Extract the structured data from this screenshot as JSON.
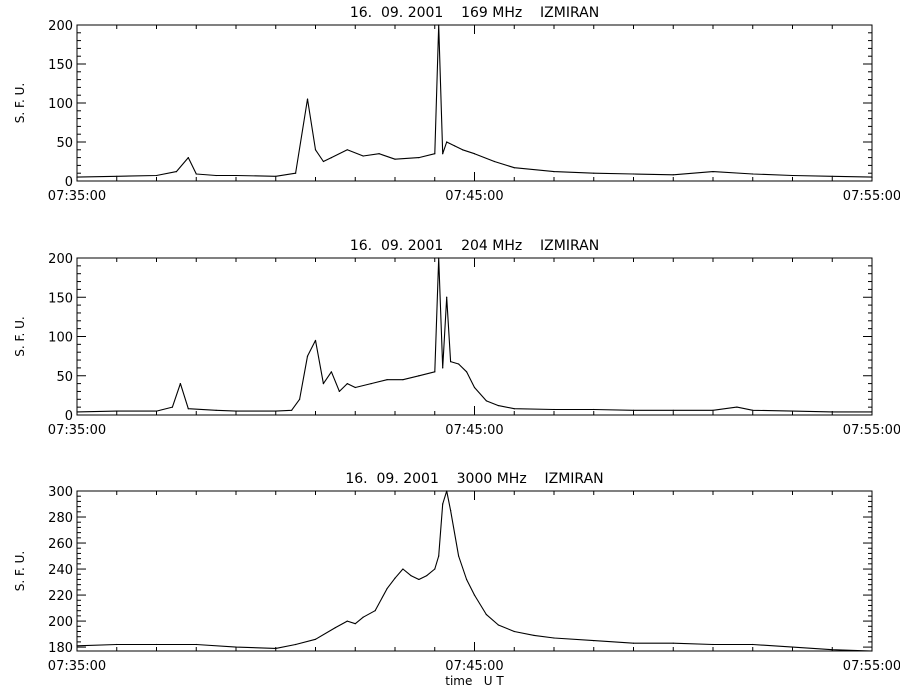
{
  "chart_data": [
    {
      "type": "line",
      "title": "16.  09. 2001    169 MHz    IZMIRAN",
      "ylabel": "S. F. U.",
      "xlabel": "",
      "xlim": [
        "07:35:00",
        "07:55:00"
      ],
      "x_ticks": [
        "07:35:00",
        "07:45:00",
        "07:55:00"
      ],
      "ylim": [
        0,
        200
      ],
      "y_ticks": [
        0,
        50,
        100,
        150,
        200
      ],
      "grid": false,
      "series": [
        {
          "x": [
            "07:35:00",
            "07:36:00",
            "07:37:00",
            "07:37:30",
            "07:37:48",
            "07:38:00",
            "07:38:30",
            "07:39:00",
            "07:40:00",
            "07:40:30",
            "07:40:48",
            "07:41:00",
            "07:41:12",
            "07:41:24",
            "07:41:48",
            "07:42:12",
            "07:42:36",
            "07:43:00",
            "07:43:36",
            "07:44:00",
            "07:44:06",
            "07:44:12",
            "07:44:18",
            "07:44:30",
            "07:44:42",
            "07:45:00",
            "07:45:30",
            "07:46:00",
            "07:47:00",
            "07:48:00",
            "07:49:00",
            "07:50:00",
            "07:51:00",
            "07:52:00",
            "07:53:00",
            "07:54:00",
            "07:55:00"
          ],
          "y": [
            5,
            6,
            7,
            12,
            30,
            9,
            7,
            7,
            6,
            10,
            105,
            40,
            25,
            30,
            40,
            32,
            35,
            28,
            30,
            35,
            200,
            35,
            50,
            45,
            40,
            35,
            25,
            17,
            12,
            10,
            9,
            8,
            12,
            9,
            7,
            6,
            5
          ]
        }
      ]
    },
    {
      "type": "line",
      "title": "16.  09. 2001    204 MHz    IZMIRAN",
      "ylabel": "S. F. U.",
      "xlabel": "",
      "xlim": [
        "07:35:00",
        "07:55:00"
      ],
      "x_ticks": [
        "07:35:00",
        "07:45:00",
        "07:55:00"
      ],
      "ylim": [
        0,
        200
      ],
      "y_ticks": [
        0,
        50,
        100,
        150,
        200
      ],
      "grid": false,
      "series": [
        {
          "x": [
            "07:35:00",
            "07:36:00",
            "07:37:00",
            "07:37:24",
            "07:37:36",
            "07:37:48",
            "07:38:30",
            "07:39:00",
            "07:40:00",
            "07:40:24",
            "07:40:36",
            "07:40:48",
            "07:41:00",
            "07:41:12",
            "07:41:24",
            "07:41:36",
            "07:41:48",
            "07:42:00",
            "07:42:24",
            "07:42:48",
            "07:43:12",
            "07:43:36",
            "07:44:00",
            "07:44:06",
            "07:44:12",
            "07:44:18",
            "07:44:24",
            "07:44:36",
            "07:44:48",
            "07:45:00",
            "07:45:18",
            "07:45:36",
            "07:46:00",
            "07:47:00",
            "07:48:00",
            "07:49:00",
            "07:50:00",
            "07:51:00",
            "07:51:36",
            "07:52:00",
            "07:53:00",
            "07:54:00",
            "07:55:00"
          ],
          "y": [
            4,
            5,
            5,
            10,
            40,
            8,
            6,
            5,
            5,
            6,
            20,
            75,
            95,
            40,
            55,
            30,
            40,
            35,
            40,
            45,
            45,
            50,
            55,
            200,
            60,
            150,
            68,
            65,
            55,
            35,
            18,
            12,
            8,
            7,
            7,
            6,
            6,
            6,
            10,
            6,
            5,
            4,
            4
          ]
        }
      ]
    },
    {
      "type": "line",
      "title": "16.  09. 2001    3000 MHz    IZMIRAN",
      "ylabel": "S. F. U.",
      "xlabel": "time   U T",
      "xlim": [
        "07:35:00",
        "07:55:00"
      ],
      "x_ticks": [
        "07:35:00",
        "07:45:00",
        "07:55:00"
      ],
      "ylim": [
        177,
        300
      ],
      "y_ticks": [
        180,
        200,
        220,
        240,
        260,
        280,
        300
      ],
      "grid": false,
      "series": [
        {
          "x": [
            "07:35:00",
            "07:36:00",
            "07:37:00",
            "07:38:00",
            "07:39:00",
            "07:40:00",
            "07:40:30",
            "07:41:00",
            "07:41:30",
            "07:41:48",
            "07:42:00",
            "07:42:12",
            "07:42:30",
            "07:42:48",
            "07:43:00",
            "07:43:12",
            "07:43:24",
            "07:43:36",
            "07:43:48",
            "07:44:00",
            "07:44:06",
            "07:44:12",
            "07:44:18",
            "07:44:24",
            "07:44:36",
            "07:44:48",
            "07:45:00",
            "07:45:18",
            "07:45:36",
            "07:46:00",
            "07:46:30",
            "07:47:00",
            "07:48:00",
            "07:49:00",
            "07:50:00",
            "07:51:00",
            "07:52:00",
            "07:53:00",
            "07:54:00",
            "07:55:00"
          ],
          "y": [
            181,
            182,
            182,
            182,
            180,
            179,
            182,
            186,
            195,
            200,
            198,
            203,
            208,
            225,
            233,
            240,
            235,
            232,
            235,
            240,
            250,
            290,
            300,
            285,
            250,
            232,
            220,
            205,
            197,
            192,
            189,
            187,
            185,
            183,
            183,
            182,
            182,
            180,
            178,
            177
          ]
        }
      ]
    }
  ]
}
